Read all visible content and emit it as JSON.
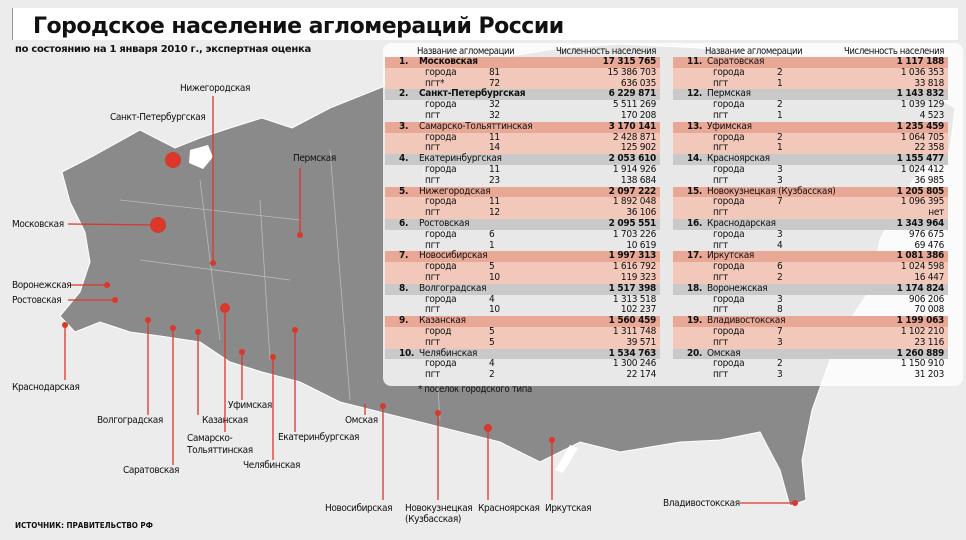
{
  "title": "Городское население агломераций России",
  "subtitle": "по состоянию на 1 января 2010 г., экспертная оценка",
  "source": "ИСТОЧНИК: ПРАВИТЕЛЬСТВО РФ",
  "footnote": "* поселок городского типа",
  "table": {
    "header_name": "Название агломерации",
    "header_pop": "Численность населения",
    "groups": [
      {
        "n": "1.",
        "name": "Московская",
        "total": "17 315 765",
        "rows": [
          [
            "города",
            "81",
            "15 386 703"
          ],
          [
            "пгт*",
            "72",
            "636 035"
          ]
        ]
      },
      {
        "n": "2.",
        "name": "Санкт-Петербургская",
        "total": "6 229 871",
        "rows": [
          [
            "города",
            "32",
            "5 511 269"
          ],
          [
            "пгт",
            "32",
            "170 208"
          ]
        ]
      },
      {
        "n": "3.",
        "name": "Самарско-Тольяттинская",
        "total": "3 170 141",
        "rows": [
          [
            "города",
            "11",
            "2 428 871"
          ],
          [
            "пгт",
            "14",
            "125 902"
          ]
        ]
      },
      {
        "n": "4.",
        "name": "Екатеринбургская",
        "total": "2 053 610",
        "rows": [
          [
            "города",
            "11",
            "1 914 926"
          ],
          [
            "пгт",
            "23",
            "138 684"
          ]
        ]
      },
      {
        "n": "5.",
        "name": "Нижегородская",
        "total": "2 097 222",
        "rows": [
          [
            "города",
            "11",
            "1 892 048"
          ],
          [
            "пгт",
            "12",
            "36 106"
          ]
        ]
      },
      {
        "n": "6.",
        "name": "Ростовская",
        "total": "2 095 551",
        "rows": [
          [
            "города",
            "6",
            "1 703 226"
          ],
          [
            "пгт",
            "1",
            "10 619"
          ]
        ]
      },
      {
        "n": "7.",
        "name": "Новосибирская",
        "total": "1 997 313",
        "rows": [
          [
            "города",
            "5",
            "1 616 792"
          ],
          [
            "пгт",
            "10",
            "119 323"
          ]
        ]
      },
      {
        "n": "8.",
        "name": "Волгоградская",
        "total": "1 517 398",
        "rows": [
          [
            "города",
            "4",
            "1 313 518"
          ],
          [
            "пгт",
            "10",
            "102 237"
          ]
        ]
      },
      {
        "n": "9.",
        "name": "Казанская",
        "total": "1 560 459",
        "rows": [
          [
            "город",
            "5",
            "1 311 748"
          ],
          [
            "пгт",
            "5",
            "39 571"
          ]
        ]
      },
      {
        "n": "10.",
        "name": "Челябинская",
        "total": "1 534 763",
        "rows": [
          [
            "города",
            "4",
            "1 300 246"
          ],
          [
            "пгт",
            "2",
            "22 174"
          ]
        ]
      },
      {
        "n": "11.",
        "name": "Саратовская",
        "total": "1 117 188",
        "rows": [
          [
            "города",
            "2",
            "1 036 353"
          ],
          [
            "пгт",
            "1",
            "33 818"
          ]
        ]
      },
      {
        "n": "12.",
        "name": "Пермская",
        "total": "1 143 832",
        "rows": [
          [
            "города",
            "2",
            "1 039 129"
          ],
          [
            "пгт",
            "1",
            "4 523"
          ]
        ]
      },
      {
        "n": "13.",
        "name": "Уфимская",
        "total": "1 235 459",
        "rows": [
          [
            "города",
            "2",
            "1 064 705"
          ],
          [
            "пгт",
            "1",
            "22 358"
          ]
        ]
      },
      {
        "n": "14.",
        "name": "Красноярская",
        "total": "1 155 477",
        "rows": [
          [
            "города",
            "3",
            "1 024 412"
          ],
          [
            "пгт",
            "3",
            "36 985"
          ]
        ]
      },
      {
        "n": "15.",
        "name": "Новокузнецкая (Кузбасская)",
        "total": "1 205 805",
        "rows": [
          [
            "города",
            "7",
            "1 096 395"
          ],
          [
            "пгт",
            "",
            "нет"
          ]
        ]
      },
      {
        "n": "16.",
        "name": "Краснодарская",
        "total": "1 343 964",
        "rows": [
          [
            "города",
            "3",
            "976 675"
          ],
          [
            "пгт",
            "4",
            "69 476"
          ]
        ]
      },
      {
        "n": "17.",
        "name": "Иркутская",
        "total": "1 081 386",
        "rows": [
          [
            "города",
            "6",
            "1 024 598"
          ],
          [
            "пгт",
            "2",
            "16 447"
          ]
        ]
      },
      {
        "n": "18.",
        "name": "Воронежская",
        "total": "1 174 824",
        "rows": [
          [
            "города",
            "3",
            "906 206"
          ],
          [
            "пгт",
            "8",
            "70 008"
          ]
        ]
      },
      {
        "n": "19.",
        "name": "Владивостокская",
        "total": "1 199 063",
        "rows": [
          [
            "города",
            "7",
            "1 102 210"
          ],
          [
            "пгт",
            "3",
            "23 116"
          ]
        ]
      },
      {
        "n": "20.",
        "name": "Омская",
        "total": "1 260 889",
        "rows": [
          [
            "города",
            "2",
            "1 150 910"
          ],
          [
            "пгт",
            "3",
            "31 203"
          ]
        ]
      }
    ]
  },
  "map_labels": {
    "nizhny": "Нижегородская",
    "spb": "Санкт-Петербургская",
    "perm": "Пермская",
    "moscow": "Московская",
    "voronezh": "Воронежская",
    "rostov": "Ростовская",
    "krasnodar": "Краснодарская",
    "volgograd": "Волгоградская",
    "saratov": "Саратовская",
    "kazan": "Казанская",
    "samara1": "Самарско-",
    "samara2": "Тольяттинская",
    "ufa": "Уфимская",
    "chelyabinsk": "Челябинская",
    "ekb": "Екатеринбургская",
    "omsk": "Омская",
    "novosib": "Новосибирская",
    "novokuz1": "Новокузнецкая",
    "novokuz2": "(Кузбасская)",
    "krasnoyarsk": "Красноярская",
    "irkutsk": "Иркутская",
    "vladivostok": "Владивостокская"
  },
  "colors": {
    "accent": "#d9382b",
    "map": "#8a8a8a",
    "row_highlight": "#e9a796",
    "row_gray": "#c9c9c9"
  }
}
